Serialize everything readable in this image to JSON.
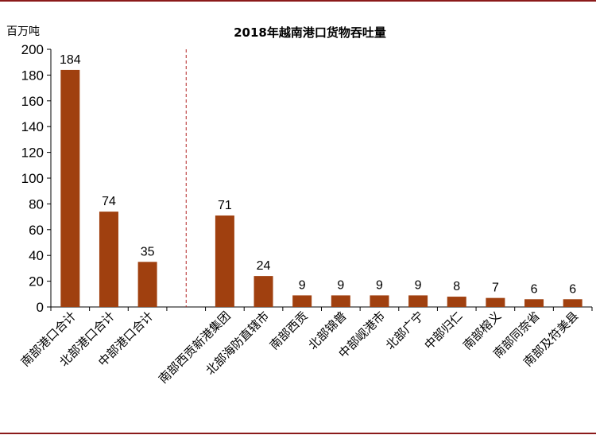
{
  "chart_data": {
    "type": "bar",
    "title": "2018年越南港口货物吞吐量",
    "unit_label": "百万吨",
    "ylim": [
      0,
      200
    ],
    "yticks": [
      0,
      20,
      40,
      60,
      80,
      100,
      120,
      140,
      160,
      180,
      200
    ],
    "categories": [
      "南部港口合计",
      "北部港口合计",
      "中部港口合计",
      "",
      "南部西贡新港集团",
      "北部海防直辖市",
      "南部西贡",
      "北部锦普",
      "中部岘港市",
      "北部广宁",
      "中部归仁",
      "南部榕义",
      "南部同奈省",
      "南部及符美县"
    ],
    "values": [
      184,
      74,
      35,
      null,
      71,
      24,
      9,
      9,
      9,
      9,
      8,
      7,
      6,
      6
    ],
    "data_labels": [
      "184",
      "74",
      "35",
      "",
      "71",
      "24",
      "9",
      "9",
      "9",
      "9",
      "8",
      "7",
      "6",
      "6"
    ],
    "bar_color": "#A0400F",
    "divider_color": "#B22222",
    "frame_color": "#8B1A1A",
    "grid": false,
    "legend": "none"
  }
}
